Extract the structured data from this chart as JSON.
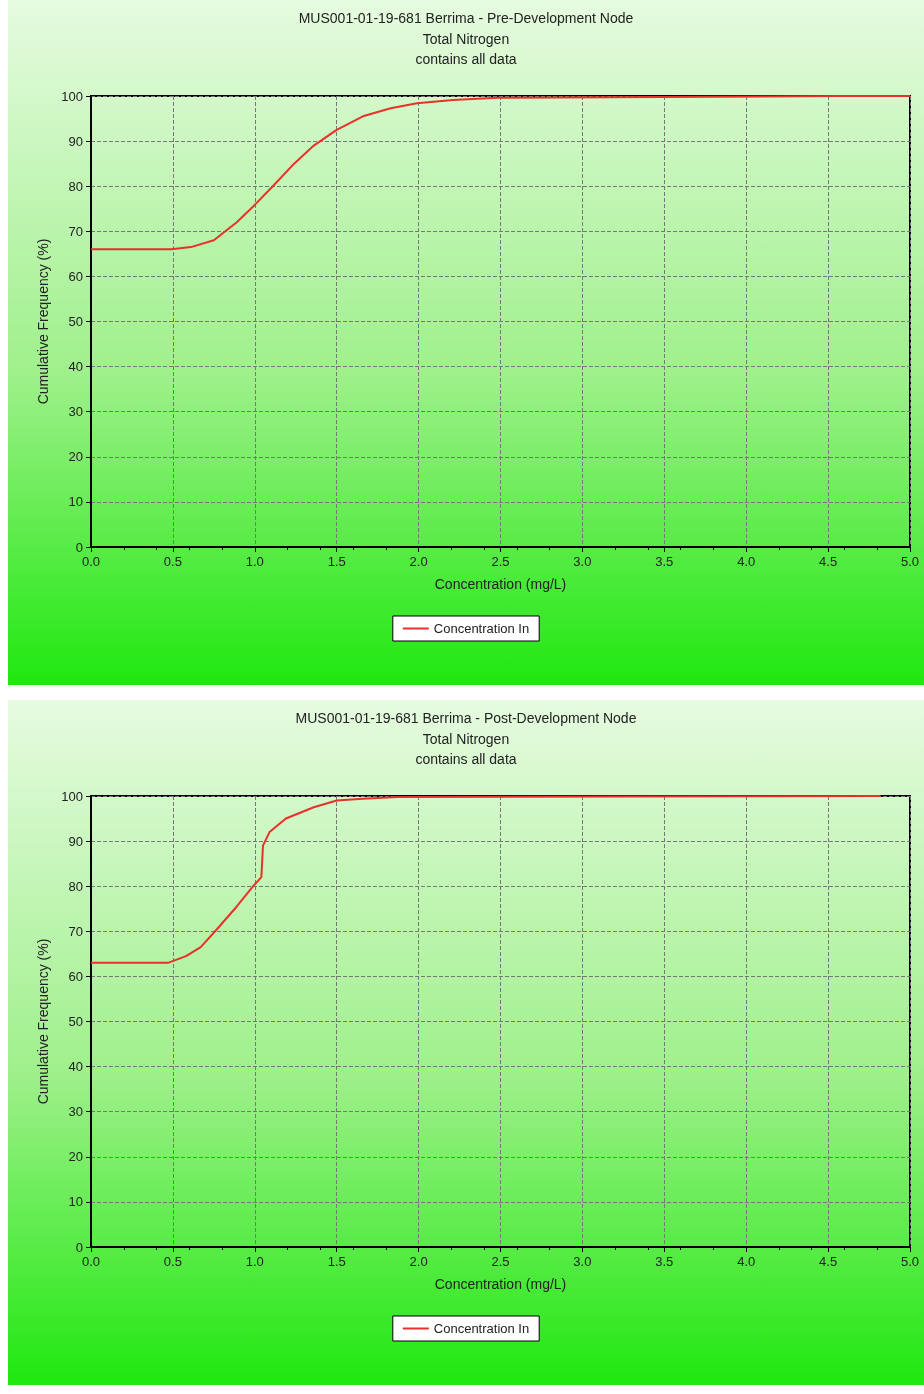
{
  "chart_data": [
    {
      "type": "line",
      "title": "MUS001-01-19-681 Berrima - Pre-Development Node",
      "subtitle": "Total Nitrogen",
      "annotations": [
        "contains all data"
      ],
      "xlabel": "Concentration (mg/L)",
      "ylabel": "Cumulative Frequency (%)",
      "xlim": [
        0,
        5
      ],
      "xticks": [
        {
          "value": 0,
          "label": "0.0"
        },
        {
          "value": 0.5,
          "label": "0.5"
        },
        {
          "value": 1,
          "label": "1.0"
        },
        {
          "value": 1.5,
          "label": "1.5"
        },
        {
          "value": 2,
          "label": "2.0"
        },
        {
          "value": 2.5,
          "label": "2.5"
        },
        {
          "value": 3,
          "label": "3.0"
        },
        {
          "value": 3.5,
          "label": "3.5"
        },
        {
          "value": 4,
          "label": "4.0"
        },
        {
          "value": 4.5,
          "label": "4.5"
        },
        {
          "value": 5,
          "label": "5.0"
        }
      ],
      "ylim": [
        0,
        100
      ],
      "yticks": [
        0,
        10,
        20,
        30,
        40,
        50,
        60,
        70,
        80,
        90,
        100
      ],
      "grid": true,
      "legend": "bottom",
      "marker": "none",
      "line_style": "solid",
      "series": [
        {
          "name": "Concentration In",
          "color": "#e8312a",
          "x": [
            0,
            0.49,
            0.61,
            0.75,
            0.89,
            0.99,
            1.11,
            1.24,
            1.36,
            1.5,
            1.66,
            1.83,
            1.99,
            2.21,
            2.48,
            4.55,
            5
          ],
          "values": [
            66,
            66,
            66.5,
            68,
            72,
            75.5,
            80,
            85,
            89,
            92.5,
            95.5,
            97.3,
            98.4,
            99.1,
            99.6,
            100,
            100
          ]
        }
      ]
    },
    {
      "type": "line",
      "title": "MUS001-01-19-681 Berrima - Post-Development Node",
      "subtitle": "Total Nitrogen",
      "annotations": [
        "contains all data"
      ],
      "xlabel": "Concentration (mg/L)",
      "ylabel": "Cumulative Frequency (%)",
      "xlim": [
        0,
        5
      ],
      "xticks": [
        {
          "value": 0,
          "label": "0.0"
        },
        {
          "value": 0.5,
          "label": "0.5"
        },
        {
          "value": 1,
          "label": "1.0"
        },
        {
          "value": 1.5,
          "label": "1.5"
        },
        {
          "value": 2,
          "label": "2.0"
        },
        {
          "value": 2.5,
          "label": "2.5"
        },
        {
          "value": 3,
          "label": "3.0"
        },
        {
          "value": 3.5,
          "label": "3.5"
        },
        {
          "value": 4,
          "label": "4.0"
        },
        {
          "value": 4.5,
          "label": "4.5"
        },
        {
          "value": 5,
          "label": "5.0"
        }
      ],
      "ylim": [
        0,
        100
      ],
      "yticks": [
        0,
        10,
        20,
        30,
        40,
        50,
        60,
        70,
        80,
        90,
        100
      ],
      "grid": true,
      "legend": "bottom",
      "marker": "none",
      "line_style": "solid",
      "series": [
        {
          "name": "Concentration In",
          "color": "#e8312a",
          "x": [
            0,
            0.47,
            0.58,
            0.67,
            0.77,
            0.89,
            0.99,
            1.04,
            1.05,
            1.09,
            1.19,
            1.36,
            1.5,
            1.66,
            1.87,
            4.82
          ],
          "values": [
            63,
            63,
            64.5,
            66.5,
            70.5,
            75.5,
            80,
            82,
            89,
            92,
            95,
            97.5,
            99,
            99.4,
            99.8,
            100
          ]
        }
      ]
    }
  ]
}
